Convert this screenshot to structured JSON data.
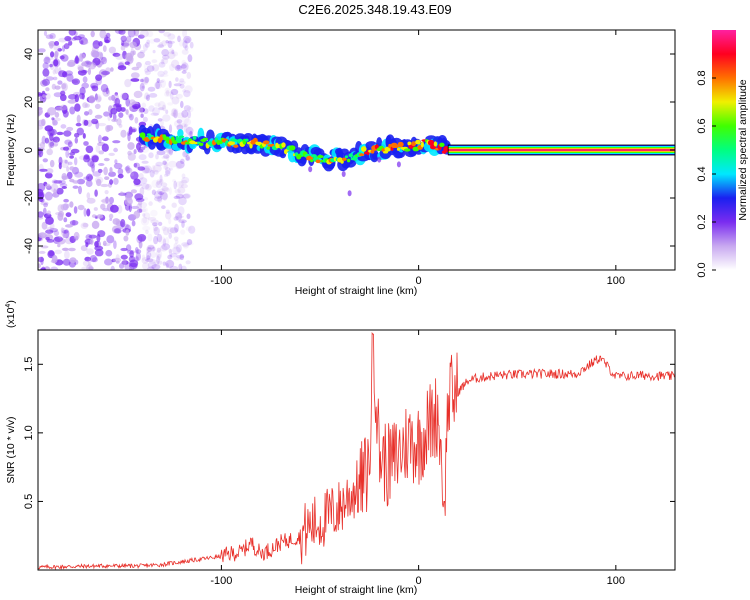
{
  "title": "C2E6.2025.348.19.43.E09",
  "chart_data": [
    {
      "type": "heatmap",
      "name": "spectrogram",
      "xlabel": "Height of straight line (km)",
      "ylabel": "Frequency (Hz)",
      "xlim": [
        -193,
        130
      ],
      "ylim": [
        -50,
        50
      ],
      "x_ticks": [
        -100,
        0,
        100
      ],
      "y_ticks": [
        -40,
        -20,
        0,
        20,
        40
      ],
      "colorbar": {
        "label": "Normalized spectral amplitude",
        "range": [
          0,
          1
        ],
        "ticks": [
          "0.0",
          "0.2",
          "0.4",
          "0.6",
          "0.8"
        ],
        "colors": [
          "#ffffff",
          "#c8a8f0",
          "#7a2cf0",
          "#1a20f0",
          "#00e8ff",
          "#00ff80",
          "#40ff00",
          "#f0f000",
          "#ff7000",
          "#ff0020",
          "#ff20a0"
        ]
      },
      "features": {
        "noise_region_x": [
          -193,
          -140
        ],
        "signal_track": [
          {
            "x": -140,
            "y": 6
          },
          {
            "x": -120,
            "y": 4
          },
          {
            "x": -100,
            "y": 3
          },
          {
            "x": -85,
            "y": 3
          },
          {
            "x": -70,
            "y": 1
          },
          {
            "x": -55,
            "y": -3
          },
          {
            "x": -45,
            "y": -4
          },
          {
            "x": -35,
            "y": -3
          },
          {
            "x": -25,
            "y": 0
          },
          {
            "x": -10,
            "y": 1
          },
          {
            "x": 0,
            "y": 2
          },
          {
            "x": 5,
            "y": 3
          },
          {
            "x": 15,
            "y": 0
          },
          {
            "x": 130,
            "y": 0
          }
        ],
        "steady_band_x": [
          15,
          130
        ],
        "steady_band_freq": 0
      }
    },
    {
      "type": "line",
      "name": "snr",
      "xlabel": "Height of straight line (km)",
      "ylabel": "SNR (10 * v/v)",
      "y_multiplier": "(x10",
      "y_multiplier_exp": "4",
      "y_multiplier_close": ")",
      "xlim": [
        -193,
        130
      ],
      "ylim": [
        0,
        1.75
      ],
      "x_ticks": [
        -100,
        0,
        100
      ],
      "y_ticks": [
        "0.5",
        "1.0",
        "1.5"
      ],
      "color": "#e8302a",
      "series": [
        {
          "name": "SNR",
          "x": [
            -193,
            -160,
            -140,
            -130,
            -120,
            -110,
            -100,
            -95,
            -90,
            -85,
            -80,
            -75,
            -70,
            -65,
            -60,
            -55,
            -50,
            -45,
            -40,
            -35,
            -30,
            -25,
            -23,
            -20,
            -15,
            -10,
            -5,
            0,
            5,
            10,
            13,
            15,
            20,
            25,
            30,
            40,
            60,
            80,
            92,
            100,
            115,
            130
          ],
          "y": [
            0.02,
            0.03,
            0.03,
            0.04,
            0.06,
            0.08,
            0.1,
            0.12,
            0.13,
            0.2,
            0.12,
            0.15,
            0.2,
            0.22,
            0.25,
            0.32,
            0.35,
            0.4,
            0.45,
            0.55,
            0.6,
            0.75,
            1.72,
            0.85,
            0.75,
            0.85,
            0.95,
            0.92,
            1.05,
            1.15,
            0.5,
            1.25,
            1.3,
            1.38,
            1.4,
            1.42,
            1.43,
            1.43,
            1.55,
            1.41,
            1.42,
            1.41
          ]
        }
      ]
    }
  ]
}
